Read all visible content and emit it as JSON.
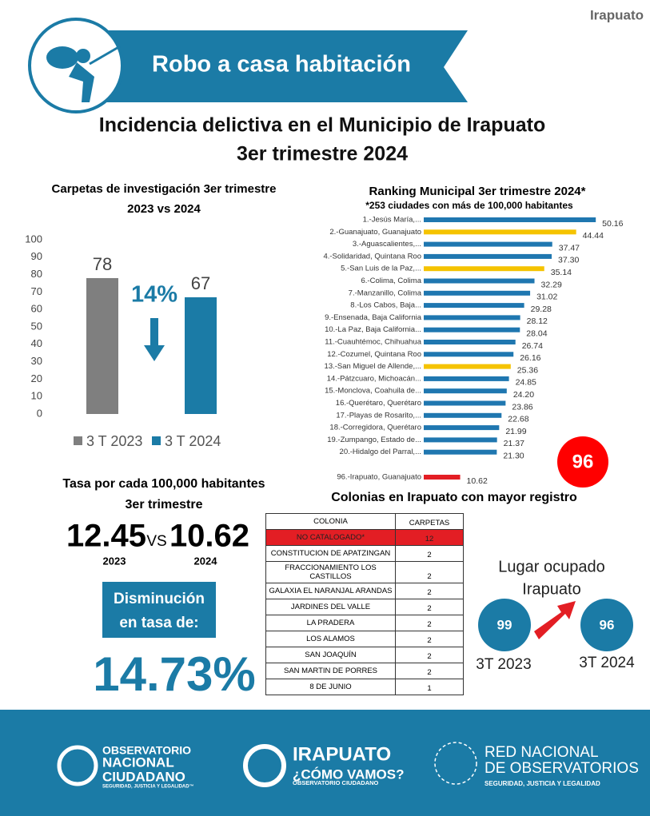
{
  "location": "Irapuato",
  "banner": {
    "title": "Robo a casa habitación"
  },
  "heading": {
    "lines": [
      "Incidencia delictiva en el Municipio de Irapuato",
      "3er trimestre 2024"
    ]
  },
  "chart_data": [
    {
      "type": "bar",
      "title": [
        "Carpetas de investigación 3er trimestre",
        "2023 vs 2024"
      ],
      "categories": [
        "3 T 2023",
        "3 T 2024"
      ],
      "series": [
        {
          "name": "3 T 2023",
          "color": "#7f7f7f",
          "values": [
            78,
            null
          ]
        },
        {
          "name": "3 T 2024",
          "color": "#1b7ba6",
          "values": [
            null,
            67
          ]
        }
      ],
      "ylim": [
        0,
        100
      ],
      "yticks": [
        0,
        10,
        20,
        30,
        40,
        50,
        60,
        70,
        80,
        90,
        100
      ],
      "annotation": "14%",
      "legend": "bottom"
    },
    {
      "type": "hbar",
      "title": "Ranking Municipal 3er trimestre 2024*",
      "subtitle": "*253 ciudades con más de 100,000 habitantes",
      "categories": [
        "1.-Jesús María,...",
        "2.-Guanajuato, Guanajuato",
        "3.-Aguascalientes,...",
        "4.-Solidaridad, Quintana Roo",
        "5.-San Luis de la Paz,...",
        "6.-Colima, Colima",
        "7.-Manzanillo, Colima",
        "8.-Los Cabos, Baja...",
        "9.-Ensenada, Baja California",
        "10.-La Paz, Baja California...",
        "11.-Cuauhtémoc, Chihuahua",
        "12.-Cozumel, Quintana Roo",
        "13.-San Miguel de Allende,...",
        "14.-Pátzcuaro, Michoacán...",
        "15.-Monclova, Coahuila de...",
        "16.-Querétaro, Querétaro",
        "17.-Playas de Rosarito,...",
        "18.-Corregidora, Querétaro",
        "19.-Zumpango, Estado de...",
        "20.-Hidalgo del Parral,...",
        "96.-Irapuato, Guanajuato"
      ],
      "values": [
        50.16,
        44.44,
        37.47,
        37.3,
        35.14,
        32.29,
        31.02,
        29.28,
        28.12,
        28.04,
        26.74,
        26.16,
        25.36,
        24.85,
        24.2,
        23.86,
        22.68,
        21.99,
        21.37,
        21.3,
        10.62
      ],
      "value_labels": [
        "50.16",
        "44.44",
        "37.47",
        "37.30",
        "35.14",
        "32.29",
        "31.02",
        "29.28",
        "28.12",
        "28.04",
        "26.74",
        "26.16",
        "25.36",
        "24.85",
        "24.20",
        "23.86",
        "22.68",
        "21.99",
        "21.37",
        "21.30",
        "10.62"
      ],
      "colors": [
        "#1f77b0",
        "#f5c300",
        "#1f77b0",
        "#1f77b0",
        "#f5c300",
        "#1f77b0",
        "#1f77b0",
        "#1f77b0",
        "#1f77b0",
        "#1f77b0",
        "#1f77b0",
        "#1f77b0",
        "#f5c300",
        "#1f77b0",
        "#1f77b0",
        "#1f77b0",
        "#1f77b0",
        "#1f77b0",
        "#1f77b0",
        "#1f77b0",
        "#e31e24"
      ],
      "badge": "96"
    }
  ],
  "rate": {
    "title": [
      "Tasa por cada 100,000 habitantes",
      "3er trimestre"
    ],
    "values": [
      "12.45",
      "10.62"
    ],
    "vs": "VS",
    "years": [
      "2023",
      "2024"
    ],
    "decrease_label": [
      "Disminución",
      "en tasa de:"
    ],
    "decrease": "14.73%"
  },
  "table": {
    "title": "Colonias en Irapuato con mayor registro",
    "header": [
      "COLONIA",
      "CARPETAS"
    ],
    "rows": [
      [
        "NO CATALOGADO*",
        12
      ],
      [
        "CONSTITUCION DE APATZINGAN",
        2
      ],
      [
        "FRACCIONAMIENTO LOS CASTILLOS",
        2
      ],
      [
        "GALAXIA EL NARANJAL ARANDAS",
        2
      ],
      [
        "JARDINES DEL VALLE",
        2
      ],
      [
        "LA PRADERA",
        2
      ],
      [
        "LOS ALAMOS",
        2
      ],
      [
        "SAN JOAQUÍN",
        2
      ],
      [
        "SAN MARTIN DE PORRES",
        2
      ],
      [
        "8 DE JUNIO",
        1
      ]
    ]
  },
  "place": {
    "title": [
      "Lugar ocupado",
      "Irapuato"
    ],
    "ranks": [
      "99",
      "96"
    ],
    "labels": [
      "3T 2023",
      "3T 2024"
    ]
  },
  "footer": [
    {
      "lines": [
        "OBSERVATORIO",
        "NACIONAL",
        "CIUDADANO"
      ],
      "tagline": "SEGURIDAD, JUSTICIA Y LEGALIDAD™"
    },
    {
      "lines": [
        "IRAPUATO",
        "¿CÓMO VAMOS?"
      ],
      "tagline": "OBSERVATORIO CIUDADANO"
    },
    {
      "lines": [
        "RED NACIONAL",
        "DE OBSERVATORIOS"
      ],
      "tagline": "SEGURIDAD, JUSTICIA Y LEGALIDAD"
    }
  ]
}
